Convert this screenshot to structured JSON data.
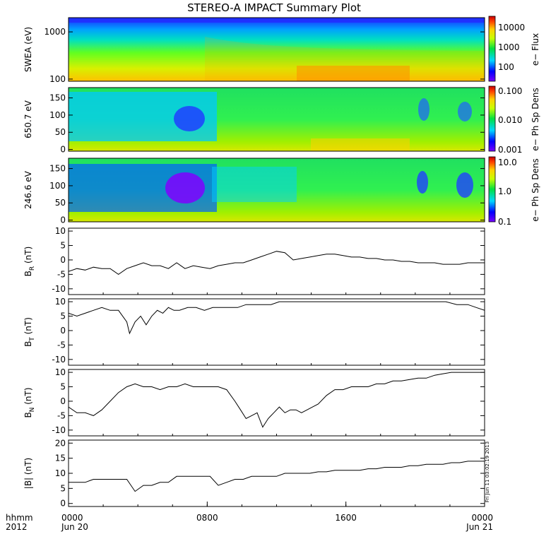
{
  "title": "STEREO-A IMPACT Summary Plot",
  "stamp": "Fri Jun 11 03:02:19 2013",
  "footer": {
    "hhmm": "hhmm",
    "year": "2012",
    "x_ticks": [
      {
        "t": 0,
        "label": "0000",
        "date": "Jun 20"
      },
      {
        "t": 0.5,
        "label": "0800",
        "date": ""
      },
      {
        "t": 1.0,
        "label": "1600",
        "date": ""
      },
      {
        "t": 1.5,
        "label": "0000",
        "date": "Jun 21"
      }
    ]
  },
  "chart_data": [
    {
      "type": "heatmap",
      "ylabel": "SWEA (eV)",
      "colorbar_label": "e− Flux",
      "y_scale": "log",
      "ylim": [
        90,
        2000
      ],
      "y_ticks": [
        100,
        1000
      ],
      "y_tick_labels": [
        "100",
        "1000"
      ],
      "cbar_ticks": [
        "100",
        "1000",
        "10000"
      ],
      "colormap": "rainbow"
    },
    {
      "type": "heatmap",
      "ylabel": "650.7 eV",
      "colorbar_label": "e− Ph Sp Dens",
      "ylim": [
        -5,
        180
      ],
      "y_ticks": [
        0,
        50,
        100,
        150
      ],
      "y_tick_labels": [
        "0",
        "50",
        "100",
        "150"
      ],
      "cbar_ticks": [
        "0.001",
        "0.010",
        "0.100"
      ],
      "colormap": "rainbow"
    },
    {
      "type": "heatmap",
      "ylabel": "246.6 eV",
      "colorbar_label": "e− Ph Sp Dens",
      "ylim": [
        -5,
        180
      ],
      "y_ticks": [
        0,
        50,
        100,
        150
      ],
      "y_tick_labels": [
        "0",
        "50",
        "100",
        "150"
      ],
      "cbar_ticks": [
        "0.1",
        "1.0",
        "10.0"
      ],
      "colormap": "rainbow"
    },
    {
      "type": "line",
      "ylabel_main": "B",
      "ylabel_sub": "R",
      "ylabel_unit": "(nT)",
      "ylim": [
        -12,
        11
      ],
      "y_ticks": [
        -10,
        -5,
        0,
        5,
        10
      ],
      "series": [
        {
          "x": [
            0,
            0.03,
            0.06,
            0.09,
            0.12,
            0.15,
            0.18,
            0.21,
            0.24,
            0.27,
            0.3,
            0.33,
            0.36,
            0.39,
            0.42,
            0.45,
            0.48,
            0.51,
            0.54,
            0.57,
            0.6,
            0.63,
            0.66,
            0.69,
            0.72,
            0.75,
            0.78,
            0.81,
            0.84,
            0.87,
            0.9,
            0.93,
            0.96,
            0.99,
            1.02,
            1.05,
            1.08,
            1.11,
            1.14,
            1.17,
            1.2,
            1.23,
            1.26,
            1.29,
            1.32,
            1.35,
            1.38,
            1.41,
            1.44,
            1.47,
            1.5
          ],
          "y": [
            -4,
            -3,
            -3.5,
            -2.5,
            -3,
            -3,
            -5,
            -3,
            -2,
            -1,
            -2,
            -2,
            -3,
            -1,
            -3,
            -2,
            -2.5,
            -3,
            -2,
            -1.5,
            -1,
            -1,
            0,
            1,
            2,
            3,
            2.5,
            0,
            0.5,
            1,
            1.5,
            2,
            2,
            1.5,
            1,
            1,
            0.5,
            0.5,
            0,
            0,
            -0.5,
            -0.5,
            -1,
            -1,
            -1,
            -1.5,
            -1.5,
            -1.5,
            -1,
            -1,
            -1
          ]
        }
      ]
    },
    {
      "type": "line",
      "ylabel_main": "B",
      "ylabel_sub": "T",
      "ylabel_unit": "(nT)",
      "ylim": [
        -12,
        11
      ],
      "y_ticks": [
        -10,
        -5,
        0,
        5,
        10
      ],
      "series": [
        {
          "x": [
            0,
            0.03,
            0.06,
            0.09,
            0.12,
            0.15,
            0.18,
            0.21,
            0.22,
            0.24,
            0.26,
            0.28,
            0.3,
            0.32,
            0.34,
            0.36,
            0.38,
            0.4,
            0.43,
            0.46,
            0.49,
            0.52,
            0.55,
            0.58,
            0.61,
            0.64,
            0.67,
            0.7,
            0.73,
            0.76,
            0.8,
            0.84,
            0.88,
            0.92,
            0.96,
            1.0,
            1.04,
            1.08,
            1.12,
            1.16,
            1.2,
            1.24,
            1.28,
            1.32,
            1.36,
            1.4,
            1.44,
            1.47,
            1.5
          ],
          "y": [
            6,
            5,
            6,
            7,
            8,
            7,
            7,
            3,
            -1,
            3,
            5,
            2,
            5,
            7,
            6,
            8,
            7,
            7,
            8,
            8,
            7,
            8,
            8,
            8,
            8,
            9,
            9,
            9,
            9,
            10,
            10,
            10,
            10,
            10,
            10,
            10,
            10,
            10,
            10,
            10,
            10,
            10,
            10,
            10,
            10,
            9,
            9,
            8,
            7
          ]
        }
      ]
    },
    {
      "type": "line",
      "ylabel_main": "B",
      "ylabel_sub": "N",
      "ylabel_unit": "(nT)",
      "ylim": [
        -12,
        11
      ],
      "y_ticks": [
        -10,
        -5,
        0,
        5,
        10
      ],
      "series": [
        {
          "x": [
            0,
            0.03,
            0.06,
            0.09,
            0.12,
            0.15,
            0.18,
            0.21,
            0.24,
            0.27,
            0.3,
            0.33,
            0.36,
            0.39,
            0.42,
            0.45,
            0.48,
            0.51,
            0.54,
            0.57,
            0.6,
            0.62,
            0.64,
            0.66,
            0.68,
            0.7,
            0.72,
            0.74,
            0.76,
            0.78,
            0.8,
            0.82,
            0.84,
            0.86,
            0.88,
            0.9,
            0.93,
            0.96,
            0.99,
            1.02,
            1.05,
            1.08,
            1.11,
            1.14,
            1.17,
            1.2,
            1.23,
            1.26,
            1.29,
            1.32,
            1.35,
            1.38,
            1.41,
            1.44,
            1.47,
            1.5
          ],
          "y": [
            -2,
            -4,
            -4,
            -5,
            -3,
            0,
            3,
            5,
            6,
            5,
            5,
            4,
            5,
            5,
            6,
            5,
            5,
            5,
            5,
            4,
            0,
            -3,
            -6,
            -5,
            -4,
            -9,
            -6,
            -4,
            -2,
            -4,
            -3,
            -3,
            -4,
            -3,
            -2,
            -1,
            2,
            4,
            4,
            5,
            5,
            5,
            6,
            6,
            7,
            7,
            7.5,
            8,
            8,
            9,
            9.5,
            10,
            10,
            10,
            10,
            10
          ]
        }
      ]
    },
    {
      "type": "line",
      "ylabel_main": "|B|",
      "ylabel_sub": "",
      "ylabel_unit": "(nT)",
      "ylim": [
        -1,
        21
      ],
      "y_ticks": [
        0,
        5,
        10,
        15,
        20
      ],
      "series": [
        {
          "x": [
            0,
            0.03,
            0.06,
            0.09,
            0.12,
            0.15,
            0.18,
            0.21,
            0.24,
            0.27,
            0.3,
            0.33,
            0.36,
            0.39,
            0.42,
            0.45,
            0.48,
            0.51,
            0.54,
            0.57,
            0.6,
            0.63,
            0.66,
            0.69,
            0.72,
            0.75,
            0.78,
            0.81,
            0.84,
            0.87,
            0.9,
            0.93,
            0.96,
            0.99,
            1.02,
            1.05,
            1.08,
            1.11,
            1.14,
            1.17,
            1.2,
            1.23,
            1.26,
            1.29,
            1.32,
            1.35,
            1.38,
            1.41,
            1.44,
            1.47,
            1.5
          ],
          "y": [
            7,
            7,
            7,
            8,
            8,
            8,
            8,
            8,
            4,
            6,
            6,
            7,
            7,
            9,
            9,
            9,
            9,
            9,
            6,
            7,
            8,
            8,
            9,
            9,
            9,
            9,
            10,
            10,
            10,
            10,
            10.5,
            10.5,
            11,
            11,
            11,
            11,
            11.5,
            11.5,
            12,
            12,
            12,
            12.5,
            12.5,
            13,
            13,
            13,
            13.5,
            13.5,
            14,
            14,
            14
          ]
        }
      ]
    }
  ]
}
